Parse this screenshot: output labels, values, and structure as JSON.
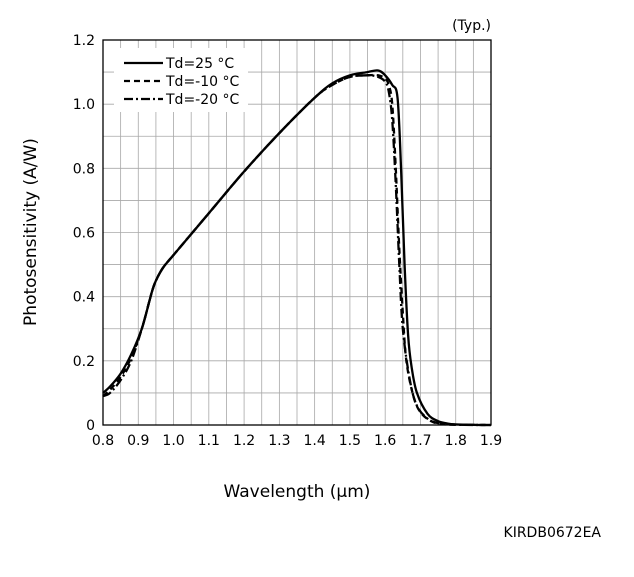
{
  "chart_data": {
    "type": "line",
    "note": "(Typ.)",
    "xlabel": "Wavelength (µm)",
    "ylabel": "Photosensitivity (A/W)",
    "xlim": [
      0.8,
      1.9
    ],
    "ylim": [
      0,
      1.2
    ],
    "x_ticks": [
      "0.8",
      "0.9",
      "1.0",
      "1.1",
      "1.2",
      "1.3",
      "1.4",
      "1.5",
      "1.6",
      "1.7",
      "1.8",
      "1.9"
    ],
    "y_ticks": [
      "0",
      "0.2",
      "0.4",
      "0.6",
      "0.8",
      "1.0",
      "1.2"
    ],
    "grid": true,
    "legend_position": "top-left",
    "series": [
      {
        "name": "Td=25 °C",
        "style": "solid",
        "x": [
          0.8,
          0.82,
          0.85,
          0.88,
          0.91,
          0.93,
          0.94,
          0.95,
          0.97,
          1.0,
          1.1,
          1.2,
          1.3,
          1.4,
          1.45,
          1.5,
          1.55,
          1.58,
          1.6,
          1.62,
          1.635,
          1.645,
          1.655,
          1.665,
          1.675,
          1.69,
          1.72,
          1.75,
          1.78,
          1.8,
          1.83,
          1.87,
          1.9
        ],
        "y": [
          0.1,
          0.12,
          0.16,
          0.22,
          0.3,
          0.38,
          0.42,
          0.45,
          0.49,
          0.53,
          0.66,
          0.79,
          0.91,
          1.02,
          1.065,
          1.09,
          1.1,
          1.105,
          1.09,
          1.06,
          1.02,
          0.8,
          0.5,
          0.28,
          0.18,
          0.1,
          0.035,
          0.012,
          0.004,
          0.002,
          0.001,
          0,
          0
        ]
      },
      {
        "name": "Td=-10 °C",
        "style": "dashed",
        "x": [
          0.8,
          0.82,
          0.85,
          0.88,
          0.91,
          0.93,
          0.94,
          0.95,
          0.97,
          1.0,
          1.1,
          1.2,
          1.3,
          1.4,
          1.45,
          1.5,
          1.55,
          1.58,
          1.6,
          1.61,
          1.62,
          1.63,
          1.64,
          1.65,
          1.66,
          1.68,
          1.7,
          1.73,
          1.76,
          1.8,
          1.9
        ],
        "y": [
          0.09,
          0.11,
          0.15,
          0.21,
          0.3,
          0.38,
          0.42,
          0.45,
          0.49,
          0.53,
          0.66,
          0.79,
          0.91,
          1.02,
          1.06,
          1.085,
          1.09,
          1.09,
          1.08,
          1.06,
          1.0,
          0.8,
          0.55,
          0.35,
          0.2,
          0.09,
          0.04,
          0.012,
          0.003,
          0.001,
          0
        ]
      },
      {
        "name": "Td=-20 °C",
        "style": "dash-dot",
        "x": [
          0.8,
          0.82,
          0.85,
          0.88,
          0.91,
          0.93,
          0.94,
          0.95,
          0.97,
          1.0,
          1.1,
          1.2,
          1.3,
          1.4,
          1.45,
          1.5,
          1.55,
          1.58,
          1.6,
          1.61,
          1.62,
          1.63,
          1.64,
          1.65,
          1.67,
          1.69,
          1.72,
          1.75,
          1.8,
          1.9
        ],
        "y": [
          0.09,
          0.1,
          0.14,
          0.2,
          0.3,
          0.38,
          0.42,
          0.45,
          0.49,
          0.53,
          0.66,
          0.79,
          0.91,
          1.02,
          1.06,
          1.085,
          1.09,
          1.085,
          1.07,
          1.04,
          0.95,
          0.75,
          0.5,
          0.3,
          0.14,
          0.06,
          0.02,
          0.006,
          0.001,
          0
        ]
      }
    ]
  },
  "footer": {
    "code": "KIRDB0672EA"
  }
}
